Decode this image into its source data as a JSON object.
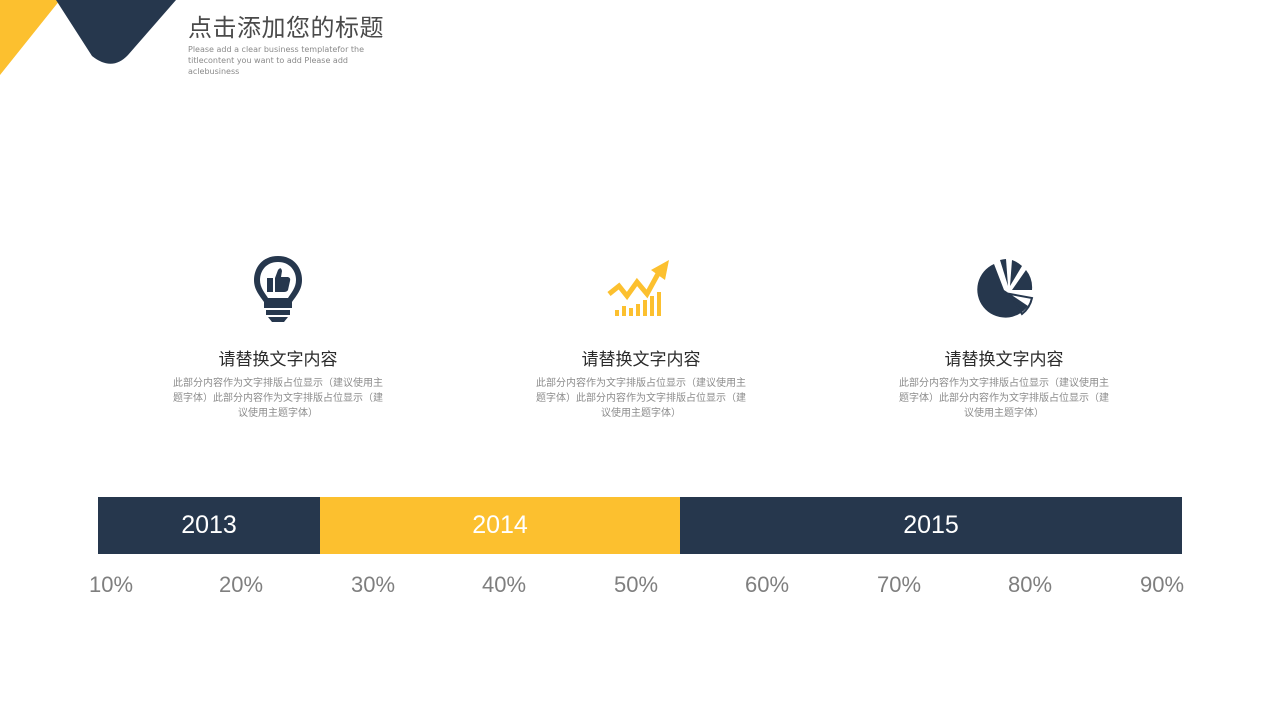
{
  "header": {
    "title": "点击添加您的标题",
    "subtitle": "Please add a clear business templatefor the titlecontent you want to add Please add aclebusiness"
  },
  "cards": [
    {
      "icon": "lightbulb-thumbs-up-icon",
      "heading": "请替换文字内容",
      "body": "此部分内容作为文字排版占位显示（建议使用主题字体）此部分内容作为文字排版占位显示（建议使用主题字体）"
    },
    {
      "icon": "growth-chart-arrow-icon",
      "heading": "请替换文字内容",
      "body": "此部分内容作为文字排版占位显示（建议使用主题字体）此部分内容作为文字排版占位显示（建议使用主题字体）"
    },
    {
      "icon": "pie-chart-icon",
      "heading": "请替换文字内容",
      "body": "此部分内容作为文字排版占位显示（建议使用主题字体）此部分内容作为文字排版占位显示（建议使用主题字体）"
    }
  ],
  "timeline": {
    "segments": [
      "2013",
      "2014",
      "2015"
    ],
    "percent_labels": [
      "10%",
      "20%",
      "30%",
      "40%",
      "50%",
      "60%",
      "70%",
      "80%",
      "90%"
    ]
  },
  "colors": {
    "navy": "#26374d",
    "yellow": "#fcc02f"
  }
}
